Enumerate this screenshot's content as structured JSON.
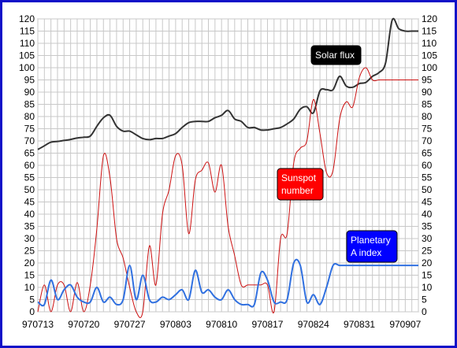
{
  "chart_data": {
    "type": "line",
    "ylim": [
      0,
      120
    ],
    "ytick_step": 5,
    "grid": true,
    "x_tick_labels": [
      "970713",
      "970720",
      "970727",
      "970803",
      "970810",
      "970817",
      "970824",
      "970831",
      "970907"
    ],
    "series": [
      {
        "name": "Solar flux",
        "label_lines": [
          "Solar flux"
        ],
        "color": "#333333",
        "label_box_color": "#000000",
        "x": [
          0,
          1,
          2,
          3,
          4,
          5,
          6,
          7,
          8,
          9,
          10,
          11,
          12,
          13,
          14,
          15,
          16,
          17,
          18,
          19,
          20,
          21,
          22,
          23,
          24,
          25,
          26,
          27,
          28,
          29,
          30,
          31,
          32,
          33,
          34,
          35,
          36,
          37,
          38,
          39,
          40,
          41,
          42,
          43,
          44,
          45,
          46,
          47,
          48,
          49,
          50,
          51,
          52,
          53,
          54,
          55,
          56,
          57,
          58
        ],
        "values": [
          66.5,
          68,
          69.5,
          69.8,
          70.2,
          70.6,
          71.2,
          71.5,
          72,
          76,
          79.5,
          80.5,
          76,
          74,
          74,
          72.5,
          71,
          70.5,
          71,
          71,
          72,
          73,
          75.5,
          77.5,
          78,
          78,
          78,
          79.5,
          80.5,
          82.5,
          79,
          78,
          75.5,
          75.5,
          74.5,
          74.5,
          75,
          75.5,
          77,
          79,
          83,
          84,
          81.5,
          90.5,
          91,
          91,
          96.5,
          92.5,
          92,
          93.5,
          94,
          96.5,
          98,
          102,
          119.5,
          116,
          115,
          115,
          115
        ]
      },
      {
        "name": "Sunspot number",
        "label_lines": [
          "Sunspot",
          "number"
        ],
        "color": "#cc1010",
        "label_box_color": "#ff0000",
        "x": [
          0,
          1,
          2,
          3,
          4,
          5,
          6,
          7,
          8,
          9,
          10,
          11,
          12,
          13,
          14,
          15,
          16,
          17,
          18,
          19,
          20,
          21,
          22,
          23,
          24,
          25,
          26,
          27,
          28,
          29,
          30,
          31,
          32,
          33,
          34,
          35,
          36,
          37,
          38,
          39,
          40,
          41,
          42,
          43,
          44,
          45,
          46,
          47,
          48,
          49,
          50,
          51,
          52,
          53,
          54,
          55,
          56,
          57,
          58
        ],
        "values": [
          0,
          11,
          0,
          11,
          11,
          0,
          12,
          0,
          11,
          34,
          64,
          55,
          30,
          22,
          10,
          0,
          0,
          27,
          11,
          40,
          50,
          64,
          60,
          32,
          54,
          58,
          61,
          49,
          60,
          35,
          23,
          11,
          11,
          11,
          11,
          11,
          0,
          30,
          32,
          61,
          67,
          70,
          87,
          73,
          57,
          58,
          79,
          86,
          84,
          96,
          100,
          95,
          95,
          95,
          95,
          95,
          95,
          95,
          95
        ]
      },
      {
        "name": "Planetary A index",
        "label_lines": [
          "Planetary",
          "A index"
        ],
        "color": "#3070e0",
        "label_box_color": "#0000ff",
        "x": [
          0,
          1,
          2,
          3,
          4,
          5,
          6,
          7,
          8,
          9,
          10,
          11,
          12,
          13,
          14,
          15,
          16,
          17,
          18,
          19,
          20,
          21,
          22,
          23,
          24,
          25,
          26,
          27,
          28,
          29,
          30,
          31,
          32,
          33,
          34,
          35,
          36,
          37,
          38,
          39,
          40,
          41,
          42,
          43,
          44,
          45,
          46,
          47,
          48,
          49,
          50,
          51,
          52,
          53,
          54,
          55,
          56,
          57,
          58
        ],
        "values": [
          4,
          3,
          13,
          5,
          9,
          11,
          6,
          4,
          4,
          10,
          4,
          6,
          3,
          5,
          19,
          5,
          15,
          5,
          4,
          6,
          5,
          7,
          9,
          5,
          17,
          8,
          9,
          6,
          5,
          9,
          5,
          3,
          3,
          3,
          16,
          13,
          4,
          4,
          5,
          20,
          19,
          4,
          7,
          3,
          10,
          19,
          19,
          19,
          19,
          19,
          19,
          19,
          19,
          19,
          19,
          19,
          19,
          19,
          19
        ]
      }
    ]
  }
}
